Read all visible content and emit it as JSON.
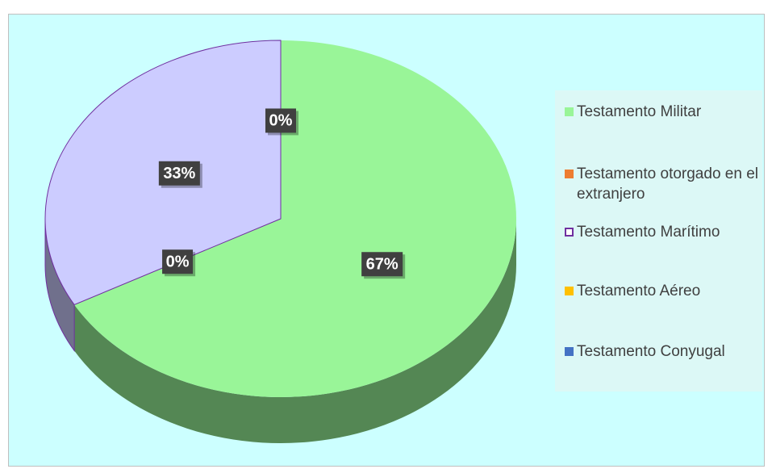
{
  "chart_data": {
    "type": "pie3d",
    "categories": [
      "Testamento Militar",
      "Testamento otorgado en el extranjero",
      "Testamento Marítimo",
      "Testamento Aéreo",
      "Testamento Conyugal"
    ],
    "values": [
      67,
      0,
      33,
      0,
      0
    ],
    "value_labels": [
      "67%",
      "0%",
      "33%",
      "0%",
      null
    ],
    "colors": [
      "#99f598",
      "#ed7d31",
      "#ccccff",
      "#ffc000",
      "#4472c4"
    ],
    "edgecolors": [
      null,
      null,
      "#7030a0",
      null,
      null
    ],
    "legend": "right"
  }
}
